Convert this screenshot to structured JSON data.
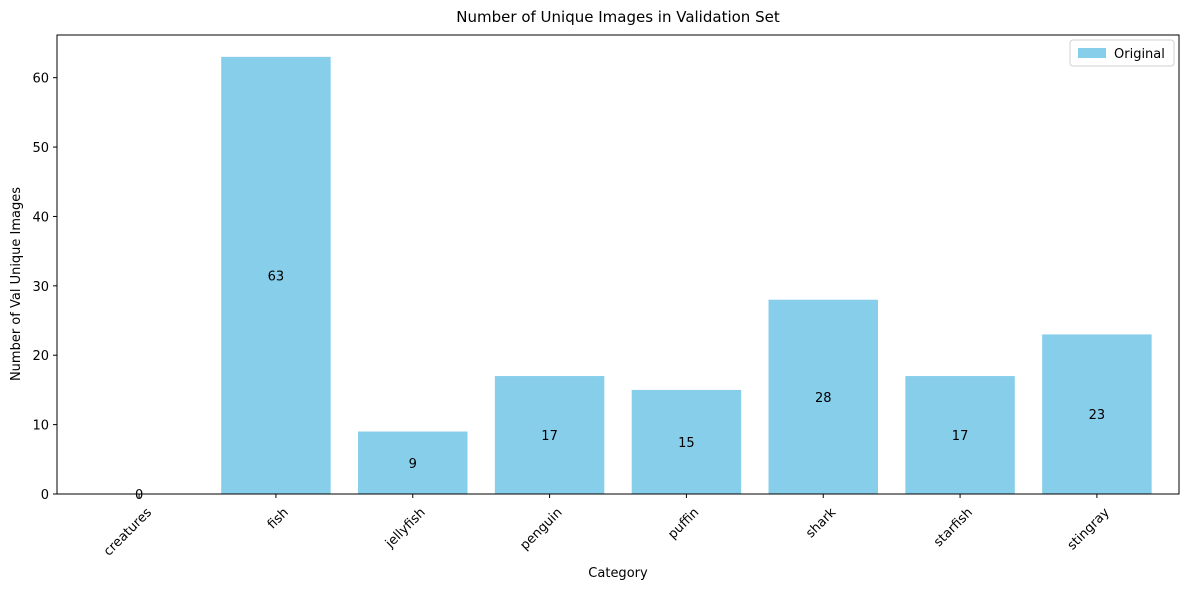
{
  "chart_data": {
    "type": "bar",
    "title": "Number of Unique Images in Validation Set",
    "xlabel": "Category",
    "ylabel": "Number of Val Unique Images",
    "categories": [
      "creatures",
      "fish",
      "jellyfish",
      "penguin",
      "puffin",
      "shark",
      "starfish",
      "stingray"
    ],
    "series": [
      {
        "name": "Original",
        "values": [
          0,
          63,
          9,
          17,
          15,
          28,
          17,
          23
        ],
        "color": "#87ceeb"
      }
    ],
    "data_labels": [
      "0",
      "63",
      "9",
      "17",
      "15",
      "28",
      "17",
      "23"
    ],
    "ylim": [
      0,
      66.15
    ],
    "yticks": [
      0,
      10,
      20,
      30,
      40,
      50,
      60
    ],
    "grid": false,
    "legend_position": "top-right",
    "x_tick_rotation_deg": 45
  }
}
